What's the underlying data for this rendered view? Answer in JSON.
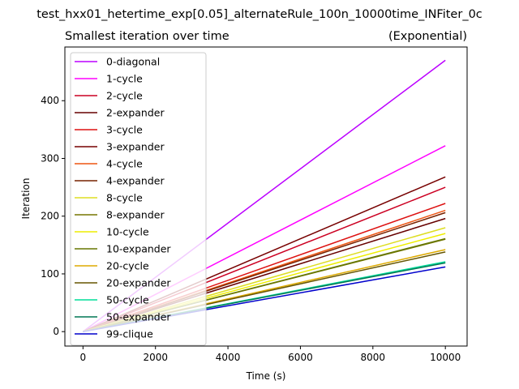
{
  "chart_data": {
    "type": "line",
    "suptitle": "test_hxx01_hetertime_exp[0.05]_alternateRule_100n_10000time_INFiter_0c",
    "title": "Smallest iteration over time",
    "title_right": "(Exponential)",
    "xlabel": "Time (s)",
    "ylabel": "Iteration",
    "xlim": [
      -500,
      10600
    ],
    "ylim": [
      -25,
      493
    ],
    "xticks": [
      0,
      2000,
      4000,
      6000,
      8000,
      10000
    ],
    "yticks": [
      0,
      100,
      200,
      300,
      400
    ],
    "grid": false,
    "legend_position": "upper-left",
    "x": [
      0,
      10000
    ],
    "series": [
      {
        "name": "0-diagonal",
        "color": "#bb00ff",
        "values": [
          0,
          470
        ]
      },
      {
        "name": "1-cycle",
        "color": "#ff00ff",
        "values": [
          0,
          322
        ]
      },
      {
        "name": "2-cycle",
        "color": "#cc0022",
        "values": [
          0,
          250
        ]
      },
      {
        "name": "2-expander",
        "color": "#660000",
        "values": [
          0,
          196
        ]
      },
      {
        "name": "3-cycle",
        "color": "#dd1111",
        "values": [
          0,
          222
        ]
      },
      {
        "name": "3-expander",
        "color": "#770000",
        "values": [
          0,
          268
        ]
      },
      {
        "name": "4-cycle",
        "color": "#ee5511",
        "values": [
          0,
          210
        ]
      },
      {
        "name": "4-expander",
        "color": "#772200",
        "values": [
          0,
          206
        ]
      },
      {
        "name": "8-cycle",
        "color": "#dddd22",
        "values": [
          0,
          180
        ]
      },
      {
        "name": "8-expander",
        "color": "#777700",
        "values": [
          0,
          160
        ]
      },
      {
        "name": "10-cycle",
        "color": "#eeee00",
        "values": [
          0,
          170
        ]
      },
      {
        "name": "10-expander",
        "color": "#667700",
        "values": [
          0,
          161
        ]
      },
      {
        "name": "20-cycle",
        "color": "#ddaa00",
        "values": [
          0,
          142
        ]
      },
      {
        "name": "20-expander",
        "color": "#665500",
        "values": [
          0,
          138
        ]
      },
      {
        "name": "50-cycle",
        "color": "#00dd99",
        "values": [
          0,
          121
        ]
      },
      {
        "name": "50-expander",
        "color": "#007755",
        "values": [
          0,
          119
        ]
      },
      {
        "name": "99-clique",
        "color": "#0000cc",
        "values": [
          0,
          112
        ]
      }
    ]
  }
}
